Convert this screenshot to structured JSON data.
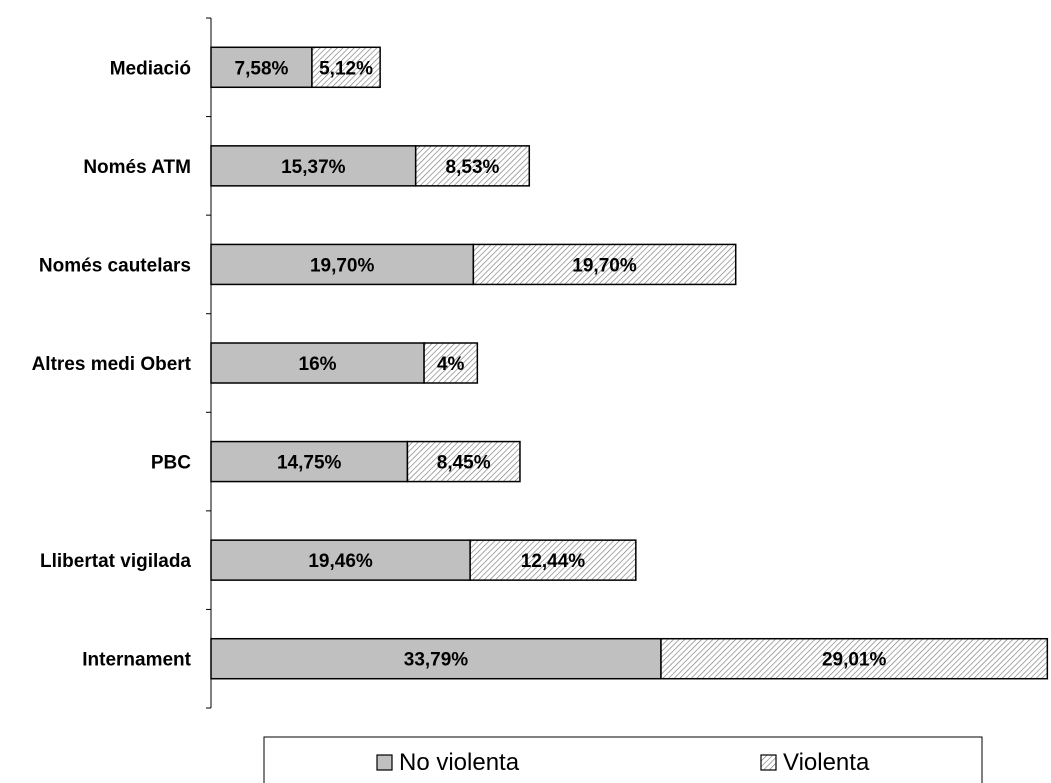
{
  "chart_data": {
    "type": "bar",
    "orientation": "horizontal",
    "stacked": true,
    "categories": [
      "Mediació",
      "Només ATM",
      "Només  cautelars",
      "Altres medi Obert",
      "PBC",
      "Llibertat vigilada",
      "Internament"
    ],
    "series": [
      {
        "name": "No violenta",
        "values": [
          7.58,
          15.37,
          19.7,
          16,
          14.75,
          19.46,
          33.79
        ],
        "labels": [
          "7,58%",
          "15,37%",
          "19,70%",
          "16%",
          "14,75%",
          "19,46%",
          "33,79%"
        ],
        "color": "#c0c0c0",
        "pattern": "solid"
      },
      {
        "name": "Violenta",
        "values": [
          5.12,
          8.53,
          19.7,
          4,
          8.45,
          12.44,
          29.01
        ],
        "labels": [
          "5,12%",
          "8,53%",
          "19,70%",
          "4%",
          "8,45%",
          "12,44%",
          "29,01%"
        ],
        "color": "#e8e8e8",
        "pattern": "diagonal-hatch"
      }
    ],
    "xlim": [
      0,
      63
    ],
    "grid": false,
    "legend_position": "bottom"
  }
}
